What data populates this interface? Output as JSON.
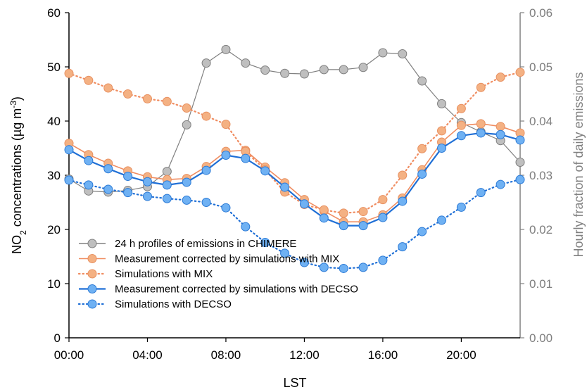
{
  "chart_data": {
    "type": "line",
    "xlabel": "LST",
    "ylabel_parts": {
      "main": "NO",
      "sub": "2",
      "rest": " concentrations (µg m",
      "sup": "-3",
      "close": ")"
    },
    "y2label": "Hourly fraction of daily emissions",
    "x": [
      0,
      1,
      2,
      3,
      4,
      5,
      6,
      7,
      8,
      9,
      10,
      11,
      12,
      13,
      14,
      15,
      16,
      17,
      18,
      19,
      20,
      21,
      22,
      23
    ],
    "xticks": [
      0,
      4,
      8,
      12,
      16,
      20
    ],
    "xtick_labels": [
      "00:00",
      "04:00",
      "08:00",
      "12:00",
      "16:00",
      "20:00"
    ],
    "xlim": [
      0,
      23
    ],
    "ylim": [
      0,
      60
    ],
    "yticks": [
      0,
      10,
      20,
      30,
      40,
      50,
      60
    ],
    "ytick_labels": [
      "0",
      "10",
      "20",
      "30",
      "40",
      "50",
      "60"
    ],
    "y2lim": [
      0,
      0.06
    ],
    "y2ticks": [
      0,
      0.01,
      0.02,
      0.03,
      0.04,
      0.05,
      0.06
    ],
    "y2tick_labels": [
      "0.00",
      "0.01",
      "0.02",
      "0.03",
      "0.04",
      "0.05",
      "0.06"
    ],
    "legend_position": "lower-left",
    "series": [
      {
        "name": "24 h  profiles of emissions in CHIMERE",
        "axis": "right",
        "style": "solid",
        "line_color": "#808080",
        "marker_fill": "#bfbfbf",
        "marker_stroke": "#7f7f7f",
        "values": [
          0.0293,
          0.0271,
          0.0269,
          0.0272,
          0.0279,
          0.0307,
          0.0393,
          0.0507,
          0.0532,
          0.0507,
          0.0494,
          0.0488,
          0.0487,
          0.0495,
          0.0495,
          0.0499,
          0.0526,
          0.0524,
          0.0474,
          0.0432,
          0.0397,
          0.038,
          0.0364,
          0.0324
        ]
      },
      {
        "name": "Measurement corrected by simulations with MIX",
        "axis": "left",
        "style": "solid",
        "line_color": "#f08c60",
        "marker_fill": "#f4b183",
        "marker_stroke": "#e89060",
        "values": [
          35.9,
          33.8,
          32.2,
          30.8,
          29.7,
          29.2,
          29.4,
          31.6,
          34.4,
          34.6,
          31.5,
          28.6,
          25.5,
          23.4,
          21.4,
          21.4,
          22.7,
          25.8,
          31.0,
          36.1,
          39.2,
          39.5,
          39.0,
          37.8
        ]
      },
      {
        "name": "Simulations with MIX",
        "axis": "left",
        "style": "dotted",
        "line_color": "#f08c60",
        "marker_fill": "#f4b183",
        "marker_stroke": "#e89060",
        "values": [
          48.8,
          47.5,
          46.1,
          45.0,
          44.1,
          43.6,
          42.4,
          40.9,
          39.4,
          34.4,
          31.0,
          26.9,
          24.6,
          23.6,
          23.0,
          23.3,
          25.5,
          30.0,
          34.9,
          38.2,
          42.3,
          46.2,
          48.1,
          49.0
        ]
      },
      {
        "name": "Measurement corrected by simulations with DECSO",
        "axis": "left",
        "style": "solid",
        "line_color": "#1f6fd6",
        "marker_fill": "#6fb1f3",
        "marker_stroke": "#2b7ad6",
        "values": [
          34.7,
          32.7,
          31.2,
          29.8,
          28.8,
          28.2,
          28.7,
          30.9,
          33.7,
          33.1,
          30.8,
          27.8,
          24.7,
          22.1,
          20.7,
          20.7,
          22.2,
          25.2,
          30.2,
          35.0,
          37.3,
          37.8,
          37.5,
          36.5
        ]
      },
      {
        "name": "Simulations with DECSO",
        "axis": "left",
        "style": "dotted",
        "line_color": "#1f6fd6",
        "marker_fill": "#6fb1f3",
        "marker_stroke": "#2b7ad6",
        "values": [
          29.1,
          28.2,
          27.4,
          26.8,
          26.1,
          25.7,
          25.4,
          25.0,
          24.0,
          20.5,
          17.6,
          15.6,
          13.9,
          13.0,
          12.8,
          13.0,
          14.3,
          16.8,
          19.6,
          21.7,
          24.1,
          26.8,
          28.3,
          29.2
        ]
      }
    ]
  }
}
